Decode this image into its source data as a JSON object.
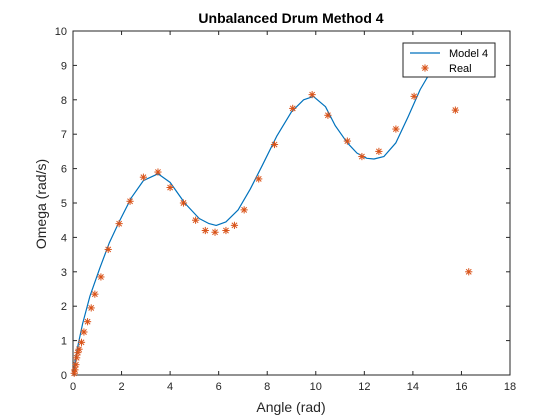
{
  "chart_data": {
    "type": "line",
    "title": "Unbalanced Drum Method 4",
    "xlabel": "Angle (rad)",
    "ylabel": "Omega (rad/s)",
    "xlim": [
      0,
      18
    ],
    "ylim": [
      0,
      10
    ],
    "xticks": [
      0,
      2,
      4,
      6,
      8,
      10,
      12,
      14,
      16,
      18
    ],
    "yticks": [
      0,
      1,
      2,
      3,
      4,
      5,
      6,
      7,
      8,
      9,
      10
    ],
    "legend_position": "top-right",
    "series": [
      {
        "name": "Model 4",
        "style": "line",
        "color": "#0072BD",
        "x": [
          0,
          0.1,
          0.2,
          0.4,
          0.7,
          1.1,
          1.5,
          1.9,
          2.4,
          2.9,
          3.5,
          4.0,
          4.6,
          5.2,
          5.6,
          5.9,
          6.3,
          6.8,
          7.3,
          7.8,
          8.4,
          9.0,
          9.5,
          9.9,
          10.4,
          10.8,
          11.3,
          11.7,
          12.1,
          12.4,
          12.8,
          13.3,
          13.8,
          14.3,
          14.8
        ],
        "y": [
          0,
          0.45,
          0.85,
          1.5,
          2.3,
          3.1,
          3.85,
          4.45,
          5.15,
          5.65,
          5.85,
          5.6,
          5.0,
          4.55,
          4.4,
          4.35,
          4.45,
          4.8,
          5.4,
          6.1,
          6.95,
          7.65,
          8.0,
          8.1,
          7.8,
          7.25,
          6.75,
          6.45,
          6.3,
          6.28,
          6.35,
          6.75,
          7.5,
          8.3,
          8.9
        ]
      },
      {
        "name": "Real",
        "style": "markers",
        "marker": "*",
        "color": "#D95319",
        "x": [
          0.05,
          0.08,
          0.12,
          0.15,
          0.2,
          0.25,
          0.35,
          0.45,
          0.6,
          0.75,
          0.9,
          1.15,
          1.45,
          1.9,
          2.35,
          2.9,
          3.5,
          4.0,
          4.55,
          5.05,
          5.45,
          5.85,
          6.3,
          6.65,
          7.05,
          7.65,
          8.3,
          9.05,
          9.85,
          10.5,
          11.3,
          11.9,
          12.6,
          13.3,
          14.05,
          15.75,
          16.3
        ],
        "y": [
          0.05,
          0.15,
          0.3,
          0.5,
          0.65,
          0.75,
          0.95,
          1.25,
          1.55,
          1.95,
          2.35,
          2.85,
          3.65,
          4.4,
          5.05,
          5.75,
          5.9,
          5.45,
          5.0,
          4.5,
          4.2,
          4.15,
          4.2,
          4.35,
          4.8,
          5.7,
          6.7,
          7.75,
          8.15,
          7.55,
          6.8,
          6.35,
          6.5,
          7.15,
          8.1,
          7.7,
          3.0
        ]
      }
    ]
  }
}
